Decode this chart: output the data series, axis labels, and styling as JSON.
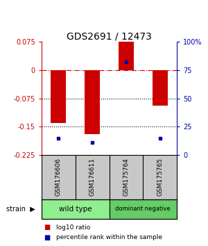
{
  "title": "GDS2691 / 12473",
  "samples": [
    "GSM176606",
    "GSM176611",
    "GSM175764",
    "GSM175765"
  ],
  "log10_ratios": [
    -0.14,
    -0.17,
    0.075,
    -0.095
  ],
  "percentile_ranks_pct": [
    15,
    11,
    82,
    15
  ],
  "groups": [
    {
      "name": "wild type",
      "samples_idx": [
        0,
        1
      ],
      "color": "#90EE90"
    },
    {
      "name": "dominant negative",
      "samples_idx": [
        2,
        3
      ],
      "color": "#66CC66"
    }
  ],
  "ylim": [
    -0.225,
    0.075
  ],
  "yticks_left": [
    0.075,
    0,
    -0.075,
    -0.15,
    -0.225
  ],
  "yticks_right_pct": [
    100,
    75,
    50,
    25,
    0
  ],
  "bar_color": "#CC0000",
  "dot_color": "#0000AA",
  "ref_line_y": 0,
  "dotted_lines": [
    -0.075,
    -0.15
  ],
  "background_color": "#ffffff",
  "legend_bar_label": "log10 ratio",
  "legend_dot_label": "percentile rank within the sample",
  "strain_label": "strain",
  "title_fontsize": 10,
  "tick_fontsize": 7,
  "sample_fontsize": 6.5,
  "group_fontsize": 7.5,
  "legend_fontsize": 6.5
}
